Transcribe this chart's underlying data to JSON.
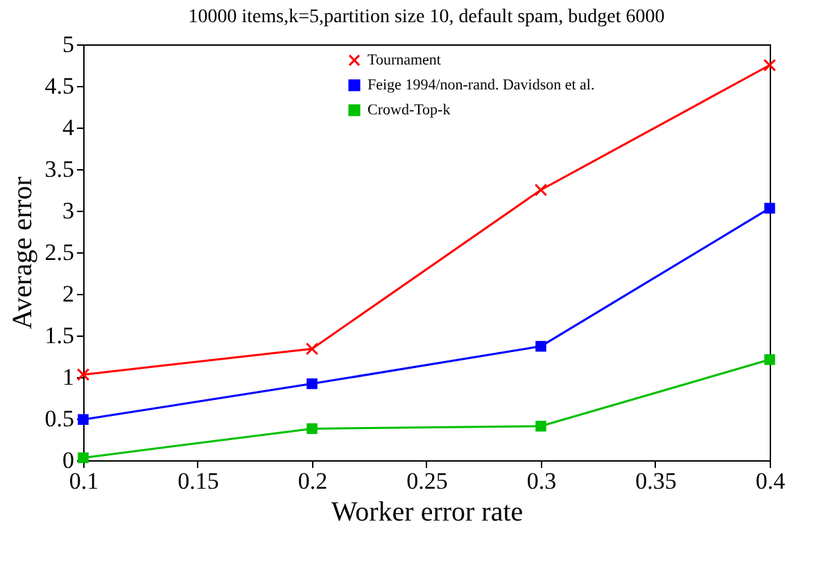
{
  "chart_data": {
    "type": "line",
    "title": "10000 items,k=5,partition size 10, default spam, budget 6000",
    "xlabel": "Worker error rate",
    "ylabel": "Average error",
    "x": [
      0.1,
      0.2,
      0.3,
      0.4
    ],
    "series": [
      {
        "name": "Tournament",
        "color": "#ff0000",
        "marker": "cross",
        "values": [
          1.03,
          1.34,
          3.25,
          4.75
        ]
      },
      {
        "name": "Feige 1994/non-rand. Davidson et al.",
        "color": "#0000ff",
        "marker": "square",
        "values": [
          0.49,
          0.92,
          1.37,
          3.03
        ]
      },
      {
        "name": "Crowd-Top-k",
        "color": "#00c000",
        "marker": "square",
        "values": [
          0.03,
          0.38,
          0.41,
          1.21
        ]
      }
    ],
    "xlim": [
      0.1,
      0.4
    ],
    "xticks": [
      0.1,
      0.15,
      0.2,
      0.25,
      0.3,
      0.35,
      0.4
    ],
    "ylim": [
      0,
      5
    ],
    "yticks": [
      0,
      0.5,
      1,
      1.5,
      2,
      2.5,
      3,
      3.5,
      4,
      4.5,
      5
    ],
    "grid": false,
    "legend": "top right",
    "line_style": "solid"
  }
}
